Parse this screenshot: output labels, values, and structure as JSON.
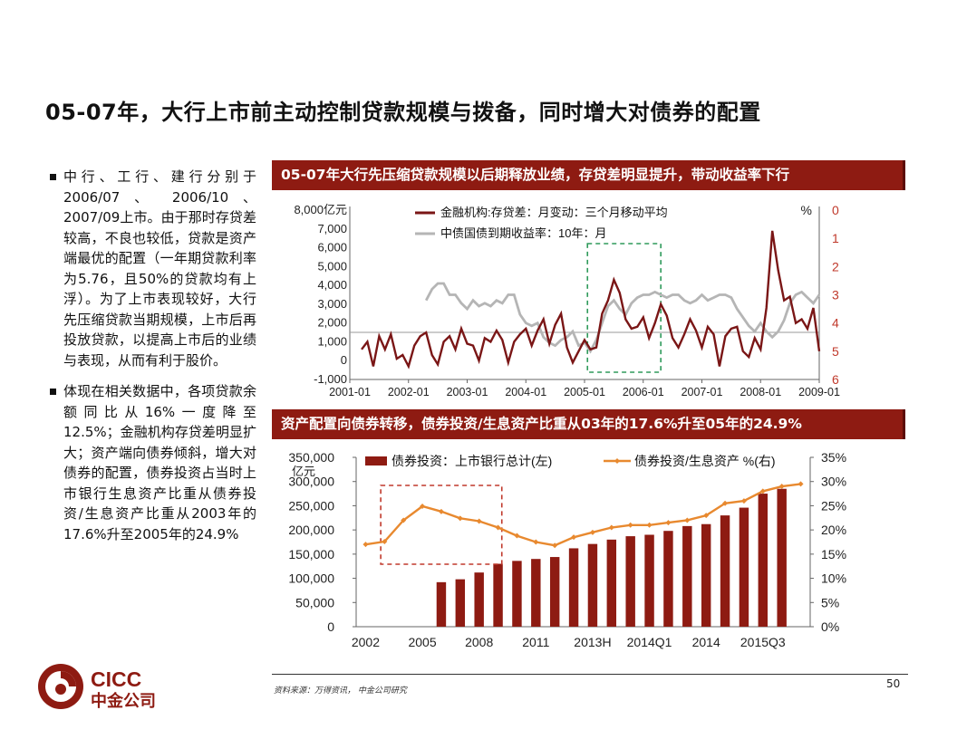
{
  "title": "05-07年，大行上市前主动控制贷款规模与拨备，同时增大对债券的配置",
  "bullets": [
    "中行、工行、建行分别于2006/07 、 2006/10 、2007/09上市。由于那时存贷差较高，不良也较低，贷款是资产端最优的配置（一年期贷款利率为5.76，且50%的贷款均有上浮）。为了上市表现较好，大行先压缩贷款当期规模，上市后再投放贷款，以提高上市后的业绩与表现，从而有利于股价。",
    "体现在相关数据中，各项贷款余额同比从16%一度降至12.5%；金融机构存贷差明显扩大；资产端向债券倾斜，增大对债券的配置，债券投资占当时上市银行生息资产比重从债券投资/生息资产比重从2003年的17.6%升至2005年的24.9%"
  ],
  "panel1_header": "05-07年大行先压缩贷款规模以后期释放业绩，存贷差明显提升，带动收益率下行",
  "panel2_header": "资产配置向债券转移，债券投资/生息资产比重从03年的17.6%升至05年的24.9%",
  "footer": {
    "source": "资料来源：万得资讯， 中金公司研究",
    "page": "50"
  },
  "logo": {
    "en": "CICC",
    "cn": "中金公司"
  },
  "colors": {
    "dark_red": "#8e1b12",
    "line_red": "#7a1616",
    "gray_line": "#b5b5b5",
    "orange": "#e8892f",
    "green_box": "#2e9a5a",
    "red_box": "#c0392b"
  },
  "chart_data": [
    {
      "type": "line",
      "left_unit": "亿元",
      "right_unit": "%",
      "left_ylim": [
        -1000,
        8000
      ],
      "left_ticks": [
        "8,000",
        "7,000",
        "6,000",
        "5,000",
        "4,000",
        "3,000",
        "2,000",
        "1,000",
        "0",
        "-1,000"
      ],
      "right_ylim_inverted": [
        0,
        6
      ],
      "right_ticks": [
        "0",
        "1",
        "2",
        "3",
        "4",
        "5",
        "6"
      ],
      "x_ticks": [
        "2001-01",
        "2002-01",
        "2003-01",
        "2004-01",
        "2005-01",
        "2006-01",
        "2007-01",
        "2008-01",
        "2009-01"
      ],
      "x_domain": [
        2001.0,
        2009.0
      ],
      "highlight_box": {
        "x_from": 2005.05,
        "x_to": 2006.3,
        "style": "green-dashed"
      },
      "series": [
        {
          "name": "金融机构:存贷差：月变动：三个月移动平均",
          "axis": "left",
          "color": "#7a1616",
          "x": [
            2001.2,
            2001.3,
            2001.4,
            2001.5,
            2001.6,
            2001.7,
            2001.8,
            2001.9,
            2002.0,
            2002.1,
            2002.2,
            2002.3,
            2002.4,
            2002.5,
            2002.6,
            2002.7,
            2002.8,
            2002.9,
            2003.0,
            2003.1,
            2003.2,
            2003.3,
            2003.4,
            2003.5,
            2003.6,
            2003.7,
            2003.8,
            2003.9,
            2004.0,
            2004.1,
            2004.2,
            2004.3,
            2004.4,
            2004.5,
            2004.6,
            2004.7,
            2004.8,
            2004.9,
            2005.0,
            2005.1,
            2005.2,
            2005.3,
            2005.4,
            2005.5,
            2005.6,
            2005.7,
            2005.8,
            2005.9,
            2006.0,
            2006.1,
            2006.2,
            2006.3,
            2006.4,
            2006.5,
            2006.6,
            2006.7,
            2006.8,
            2006.9,
            2007.0,
            2007.1,
            2007.2,
            2007.3,
            2007.4,
            2007.5,
            2007.6,
            2007.7,
            2007.8,
            2007.9,
            2008.0,
            2008.1,
            2008.2,
            2008.3,
            2008.4,
            2008.5,
            2008.6,
            2008.7,
            2008.8,
            2008.9,
            2009.0
          ],
          "values": [
            600,
            1000,
            -300,
            1300,
            600,
            1400,
            100,
            300,
            -300,
            800,
            1300,
            1500,
            300,
            -200,
            1000,
            1300,
            600,
            1700,
            900,
            800,
            0,
            1200,
            1000,
            1600,
            1100,
            -100,
            1000,
            1400,
            1700,
            800,
            1600,
            2200,
            900,
            1900,
            2500,
            700,
            -100,
            500,
            1100,
            600,
            700,
            2500,
            3200,
            4300,
            3600,
            2200,
            1700,
            1800,
            2300,
            1200,
            2000,
            3000,
            2400,
            1200,
            700,
            1400,
            2200,
            1600,
            700,
            1800,
            1400,
            -300,
            1300,
            1700,
            1800,
            500,
            200,
            1200,
            600,
            2800,
            6900,
            4800,
            3200,
            3400,
            2000,
            2200,
            1700,
            2800,
            500
          ]
        },
        {
          "name": "中债国债到期收益率：10年：月",
          "axis": "right",
          "color": "#b5b5b5",
          "x": [
            2002.3,
            2002.4,
            2002.5,
            2002.6,
            2002.7,
            2002.8,
            2002.9,
            2003.0,
            2003.1,
            2003.2,
            2003.3,
            2003.4,
            2003.5,
            2003.6,
            2003.7,
            2003.8,
            2003.9,
            2004.0,
            2004.1,
            2004.2,
            2004.3,
            2004.4,
            2004.5,
            2004.6,
            2004.7,
            2004.8,
            2004.9,
            2005.0,
            2005.1,
            2005.2,
            2005.3,
            2005.4,
            2005.5,
            2005.6,
            2005.7,
            2005.8,
            2005.9,
            2006.0,
            2006.1,
            2006.2,
            2006.3,
            2006.4,
            2006.5,
            2006.6,
            2006.7,
            2006.8,
            2006.9,
            2007.0,
            2007.1,
            2007.2,
            2007.3,
            2007.4,
            2007.5,
            2007.6,
            2007.7,
            2007.8,
            2007.9,
            2008.0,
            2008.1,
            2008.2,
            2008.3,
            2008.4,
            2008.5,
            2008.6,
            2008.7,
            2008.8,
            2008.9,
            2009.0
          ],
          "values": [
            3.2,
            2.8,
            2.6,
            2.6,
            3.0,
            3.0,
            3.3,
            3.5,
            3.2,
            3.4,
            3.3,
            3.4,
            3.2,
            3.3,
            3.0,
            3.0,
            3.7,
            4.0,
            4.1,
            4.0,
            4.5,
            4.7,
            4.8,
            4.6,
            4.5,
            4.3,
            4.8,
            4.7,
            5.0,
            4.6,
            4.0,
            3.4,
            3.2,
            3.5,
            3.7,
            3.3,
            3.1,
            3.0,
            3.0,
            2.9,
            3.0,
            3.1,
            3.0,
            3.0,
            3.2,
            3.3,
            3.2,
            3.0,
            3.2,
            3.1,
            3.0,
            3.0,
            3.1,
            3.5,
            3.8,
            4.1,
            4.3,
            4.0,
            4.3,
            4.5,
            4.3,
            3.9,
            3.3,
            3.0,
            2.9,
            3.1,
            3.3,
            3.0
          ]
        }
      ]
    },
    {
      "type": "bar",
      "left_unit": "亿元",
      "left_ylim": [
        0,
        350000
      ],
      "left_ticks": [
        "350,000",
        "300,000",
        "250,000",
        "200,000",
        "150,000",
        "100,000",
        "50,000",
        "0"
      ],
      "right_ylim": [
        0,
        35
      ],
      "right_ticks": [
        "35%",
        "30%",
        "25%",
        "20%",
        "15%",
        "10%",
        "5%",
        "0%"
      ],
      "x_ticks": [
        "2002",
        "2005",
        "2008",
        "2011",
        "2013H",
        "2014Q1",
        "2014",
        "2015Q3"
      ],
      "highlight_box": {
        "from_index": 1,
        "to_index": 7,
        "style": "red-dashed"
      },
      "categories": [
        "c1",
        "c2",
        "c3",
        "c4",
        "c5",
        "c6",
        "c7",
        "c8",
        "c9",
        "c10",
        "c11",
        "c12",
        "c13",
        "c14",
        "c15",
        "c16",
        "c17",
        "c18",
        "c19",
        "c20",
        "c21",
        "c22",
        "c23",
        "c24"
      ],
      "series": [
        {
          "name": "债券投资：上市银行总计(左)",
          "axis": "left",
          "color": "#8e1b12",
          "values": [
            null,
            null,
            null,
            null,
            92000,
            98000,
            112000,
            130000,
            136000,
            140000,
            144000,
            162000,
            171000,
            180000,
            187000,
            190000,
            198000,
            208000,
            212000,
            230000,
            246000,
            275000,
            285000,
            null
          ]
        },
        {
          "name": "债券投资/生息资产 %(右)",
          "axis": "right",
          "color": "#e8892f",
          "values": [
            17.0,
            17.6,
            22.0,
            24.9,
            23.8,
            22.4,
            21.8,
            20.5,
            18.8,
            17.5,
            16.8,
            18.5,
            19.5,
            20.5,
            21.0,
            21.0,
            21.5,
            22.0,
            23.0,
            25.5,
            26.0,
            28.0,
            29.0,
            29.5
          ]
        }
      ]
    }
  ]
}
